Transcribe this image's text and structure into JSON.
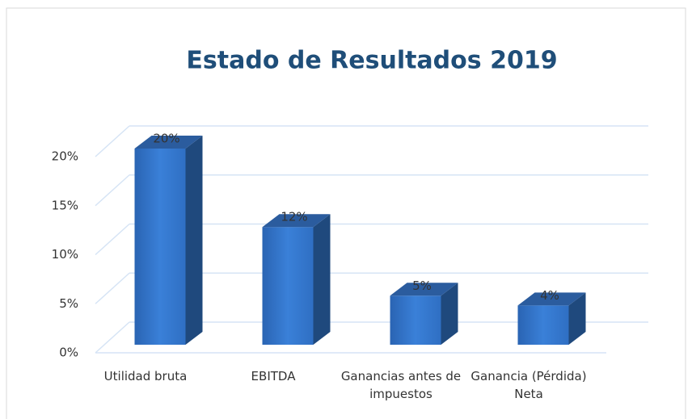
{
  "chart_data": {
    "type": "bar3d",
    "title": "Estado de Resultados 2019",
    "categories": [
      "Utilidad bruta",
      "EBITDA",
      "Ganancias antes de impuestos",
      "Ganancia (Pérdida) Neta"
    ],
    "values": [
      20,
      12,
      5,
      4
    ],
    "value_labels": [
      "20%",
      "12%",
      "5%",
      "4%"
    ],
    "color": "#2f6fc3",
    "ylim": [
      0,
      20
    ],
    "yticks": [
      {
        "value": 0,
        "label": "0%"
      },
      {
        "value": 5,
        "label": "5%"
      },
      {
        "value": 10,
        "label": "10%"
      },
      {
        "value": 15,
        "label": "15%"
      },
      {
        "value": 20,
        "label": "20%"
      }
    ],
    "grid": true
  }
}
